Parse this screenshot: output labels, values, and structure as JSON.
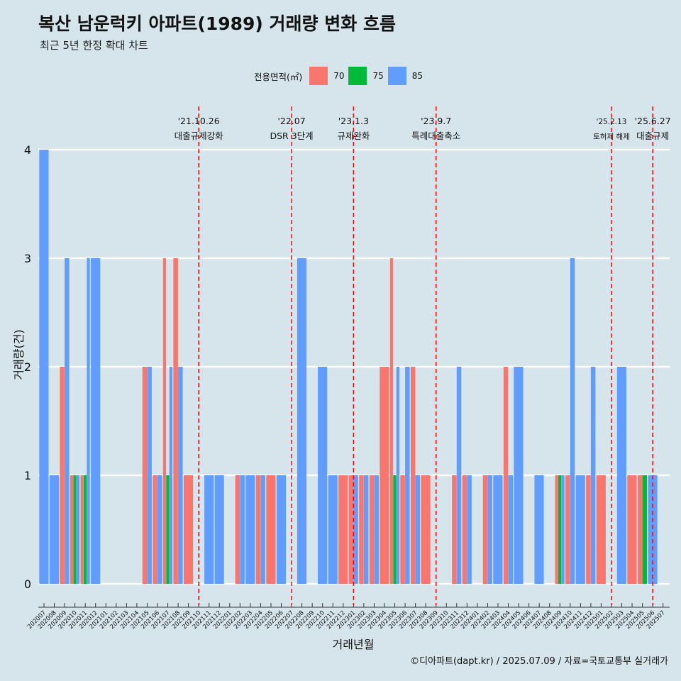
{
  "header": {
    "title": "복산 남운럭키 아파트(1989) 거래량 변화 흐름",
    "subtitle": "최근 5년 한정 확대 차트"
  },
  "legend": {
    "title": "전용면적(㎡)",
    "items": [
      {
        "label": "70",
        "color": "#f8766d"
      },
      {
        "label": "75",
        "color": "#00ba38"
      },
      {
        "label": "85",
        "color": "#619cff"
      }
    ]
  },
  "footer": {
    "credit": "©디아파트(dapt.kr) / 2025.07.09 / 자료=국토교통부 실거래가"
  },
  "chart_data": {
    "type": "bar",
    "xlabel": "거래년월",
    "ylabel": "거래량(건)",
    "ylim": [
      0,
      4
    ],
    "yticks": [
      0,
      1,
      2,
      3,
      4
    ],
    "series_colors": {
      "70": "#f8766d",
      "75": "#00ba38",
      "85": "#619cff"
    },
    "categories": [
      "202007",
      "202008",
      "202009",
      "202010",
      "202011",
      "202012",
      "202101",
      "202102",
      "202103",
      "202104",
      "202105",
      "202106",
      "202107",
      "202108",
      "202109",
      "202110",
      "202111",
      "202112",
      "202201",
      "202202",
      "202203",
      "202204",
      "202205",
      "202206",
      "202207",
      "202208",
      "202209",
      "202210",
      "202211",
      "202212",
      "202301",
      "202302",
      "202303",
      "202304",
      "202305",
      "202306",
      "202307",
      "202308",
      "202309",
      "202310",
      "202311",
      "202312",
      "202401",
      "202402",
      "202403",
      "202404",
      "202405",
      "202406",
      "202407",
      "202408",
      "202409",
      "202410",
      "202411",
      "202412",
      "202501",
      "202502",
      "202503",
      "202504",
      "202505",
      "202506",
      "202507"
    ],
    "bars": [
      {
        "month": "202007",
        "values": [
          {
            "area": "85",
            "count": 4
          }
        ]
      },
      {
        "month": "202008",
        "values": [
          {
            "area": "85",
            "count": 1
          }
        ]
      },
      {
        "month": "202009",
        "values": [
          {
            "area": "70",
            "count": 2
          },
          {
            "area": "85",
            "count": 3
          }
        ]
      },
      {
        "month": "202010",
        "values": [
          {
            "area": "70",
            "count": 1
          },
          {
            "area": "75",
            "count": 1
          },
          {
            "area": "85",
            "count": 1
          }
        ]
      },
      {
        "month": "202011",
        "values": [
          {
            "area": "70",
            "count": 1
          },
          {
            "area": "75",
            "count": 1
          },
          {
            "area": "85",
            "count": 3
          }
        ]
      },
      {
        "month": "202012",
        "values": [
          {
            "area": "85",
            "count": 3
          }
        ]
      },
      {
        "month": "202105",
        "values": [
          {
            "area": "70",
            "count": 2
          },
          {
            "area": "85",
            "count": 2
          }
        ]
      },
      {
        "month": "202106",
        "values": [
          {
            "area": "70",
            "count": 1
          },
          {
            "area": "85",
            "count": 1
          }
        ]
      },
      {
        "month": "202107",
        "values": [
          {
            "area": "70",
            "count": 3
          },
          {
            "area": "75",
            "count": 1
          },
          {
            "area": "85",
            "count": 2
          }
        ]
      },
      {
        "month": "202108",
        "values": [
          {
            "area": "70",
            "count": 3
          },
          {
            "area": "85",
            "count": 2
          }
        ]
      },
      {
        "month": "202109",
        "values": [
          {
            "area": "70",
            "count": 1
          }
        ]
      },
      {
        "month": "202111",
        "values": [
          {
            "area": "85",
            "count": 1
          }
        ]
      },
      {
        "month": "202112",
        "values": [
          {
            "area": "85",
            "count": 1
          }
        ]
      },
      {
        "month": "202202",
        "values": [
          {
            "area": "70",
            "count": 1
          },
          {
            "area": "85",
            "count": 1
          }
        ]
      },
      {
        "month": "202203",
        "values": [
          {
            "area": "85",
            "count": 1
          }
        ]
      },
      {
        "month": "202204",
        "values": [
          {
            "area": "70",
            "count": 1
          },
          {
            "area": "85",
            "count": 1
          }
        ]
      },
      {
        "month": "202205",
        "values": [
          {
            "area": "70",
            "count": 1
          }
        ]
      },
      {
        "month": "202206",
        "values": [
          {
            "area": "85",
            "count": 1
          }
        ]
      },
      {
        "month": "202208",
        "values": [
          {
            "area": "85",
            "count": 3
          }
        ]
      },
      {
        "month": "202210",
        "values": [
          {
            "area": "85",
            "count": 2
          }
        ]
      },
      {
        "month": "202211",
        "values": [
          {
            "area": "85",
            "count": 1
          }
        ]
      },
      {
        "month": "202212",
        "values": [
          {
            "area": "70",
            "count": 1
          }
        ]
      },
      {
        "month": "202301",
        "values": [
          {
            "area": "70",
            "count": 1
          },
          {
            "area": "85",
            "count": 1
          }
        ]
      },
      {
        "month": "202302",
        "values": [
          {
            "area": "70",
            "count": 1
          },
          {
            "area": "85",
            "count": 1
          }
        ]
      },
      {
        "month": "202303",
        "values": [
          {
            "area": "70",
            "count": 1
          },
          {
            "area": "85",
            "count": 1
          }
        ]
      },
      {
        "month": "202304",
        "values": [
          {
            "area": "70",
            "count": 2
          }
        ]
      },
      {
        "month": "202305",
        "values": [
          {
            "area": "70",
            "count": 3
          },
          {
            "area": "75",
            "count": 1
          },
          {
            "area": "85",
            "count": 2
          }
        ]
      },
      {
        "month": "202306",
        "values": [
          {
            "area": "70",
            "count": 1
          },
          {
            "area": "85",
            "count": 2
          }
        ]
      },
      {
        "month": "202307",
        "values": [
          {
            "area": "70",
            "count": 2
          },
          {
            "area": "85",
            "count": 1
          }
        ]
      },
      {
        "month": "202308",
        "values": [
          {
            "area": "70",
            "count": 1
          }
        ]
      },
      {
        "month": "202311",
        "values": [
          {
            "area": "70",
            "count": 1
          },
          {
            "area": "85",
            "count": 2
          }
        ]
      },
      {
        "month": "202312",
        "values": [
          {
            "area": "70",
            "count": 1
          },
          {
            "area": "85",
            "count": 1
          }
        ]
      },
      {
        "month": "202402",
        "values": [
          {
            "area": "70",
            "count": 1
          },
          {
            "area": "85",
            "count": 1
          }
        ]
      },
      {
        "month": "202403",
        "values": [
          {
            "area": "85",
            "count": 1
          }
        ]
      },
      {
        "month": "202404",
        "values": [
          {
            "area": "70",
            "count": 2
          },
          {
            "area": "85",
            "count": 1
          }
        ]
      },
      {
        "month": "202405",
        "values": [
          {
            "area": "85",
            "count": 2
          }
        ]
      },
      {
        "month": "202407",
        "values": [
          {
            "area": "85",
            "count": 1
          }
        ]
      },
      {
        "month": "202409",
        "values": [
          {
            "area": "70",
            "count": 1
          },
          {
            "area": "75",
            "count": 1
          },
          {
            "area": "85",
            "count": 1
          }
        ]
      },
      {
        "month": "202410",
        "values": [
          {
            "area": "70",
            "count": 1
          },
          {
            "area": "85",
            "count": 3
          }
        ]
      },
      {
        "month": "202411",
        "values": [
          {
            "area": "85",
            "count": 1
          }
        ]
      },
      {
        "month": "202412",
        "values": [
          {
            "area": "70",
            "count": 1
          },
          {
            "area": "85",
            "count": 2
          }
        ]
      },
      {
        "month": "202501",
        "values": [
          {
            "area": "70",
            "count": 1
          }
        ]
      },
      {
        "month": "202503",
        "values": [
          {
            "area": "85",
            "count": 2
          }
        ]
      },
      {
        "month": "202504",
        "values": [
          {
            "area": "70",
            "count": 1
          }
        ]
      },
      {
        "month": "202505",
        "values": [
          {
            "area": "70",
            "count": 1
          },
          {
            "area": "75",
            "count": 1
          }
        ]
      },
      {
        "month": "202506",
        "values": [
          {
            "area": "85",
            "count": 1
          }
        ]
      }
    ],
    "annotations": [
      {
        "month": "202110",
        "date": "'21.10.26",
        "label": "대출규제강화"
      },
      {
        "month": "202207",
        "date": "'22.07",
        "label": "DSR 3단계"
      },
      {
        "month": "202301",
        "date": "'23.1.3",
        "label": "규제완화"
      },
      {
        "month": "202309",
        "date": "'23.9.7",
        "label": "특례대출축소"
      },
      {
        "month": "202502",
        "date": "'25.2.13",
        "label": "토허제 해제"
      },
      {
        "month": "202506",
        "date": "'25.6.27",
        "label": "대출규제"
      }
    ],
    "grid": true,
    "legend_position": "top"
  }
}
